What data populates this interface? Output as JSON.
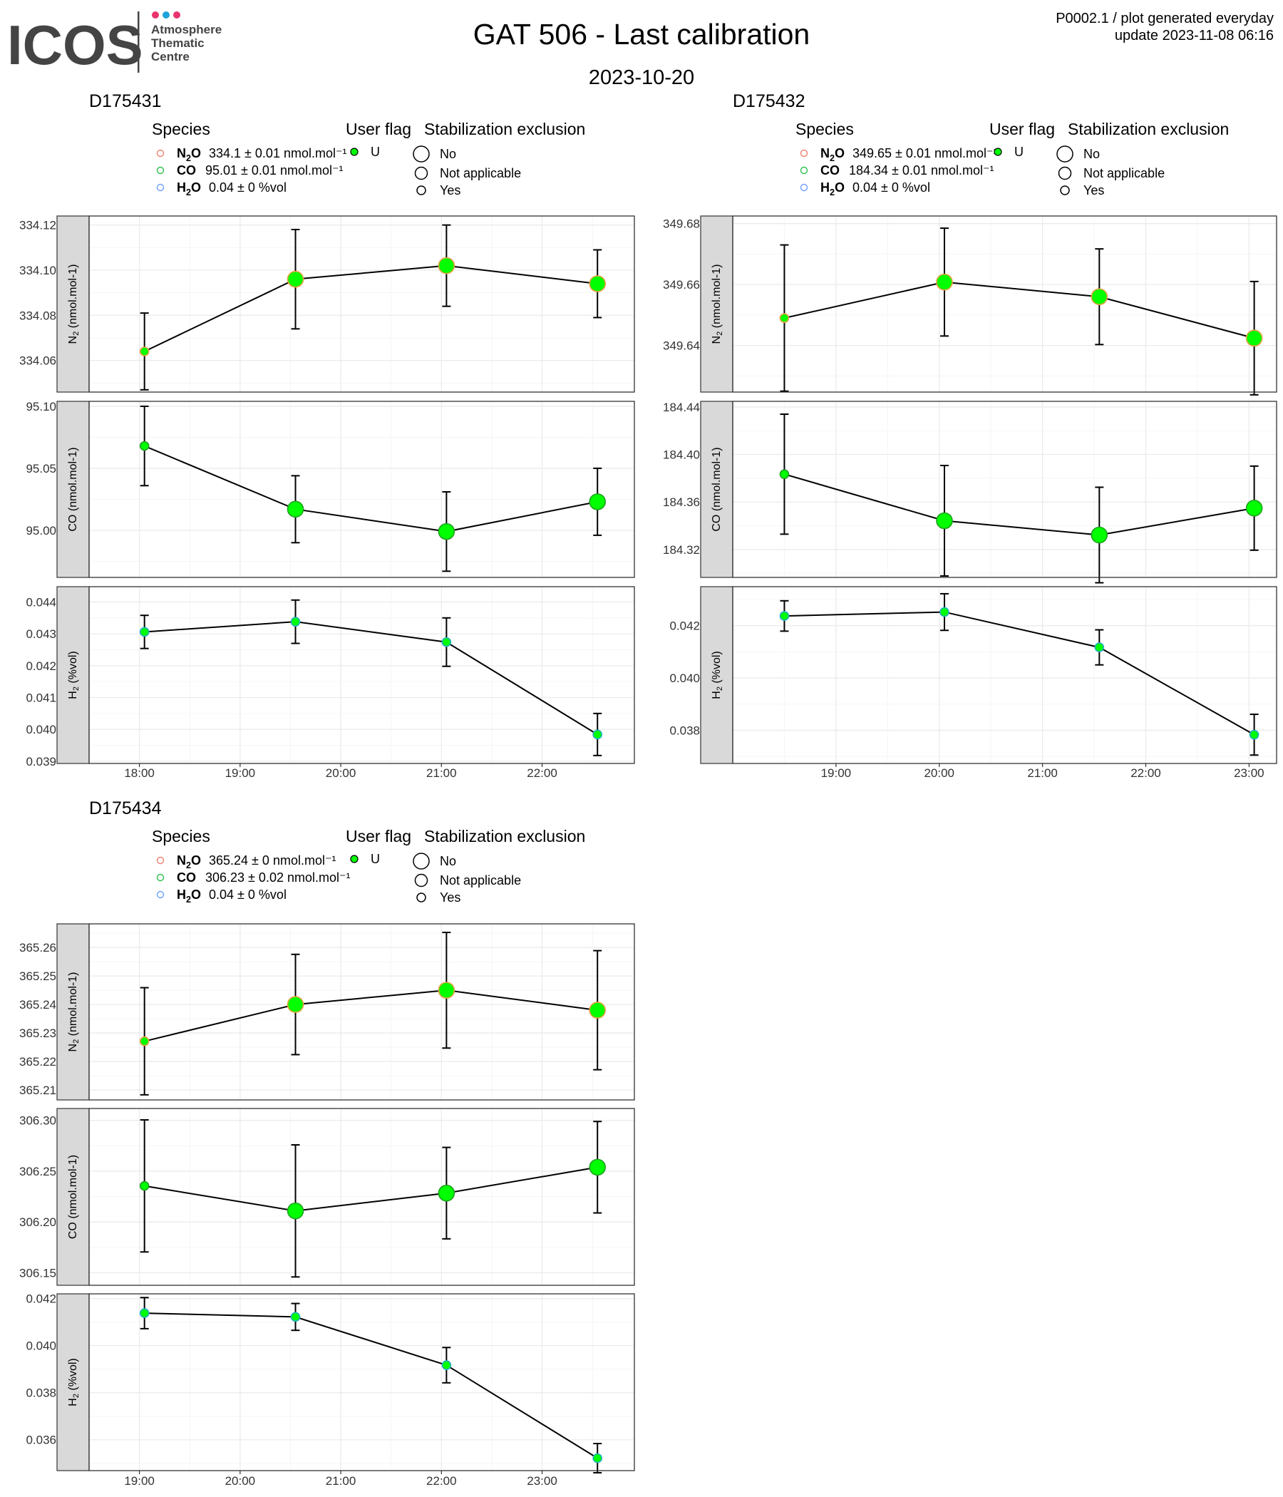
{
  "logo": {
    "wordmark": "ICOS",
    "lines": [
      "Atmosphere",
      "Thematic",
      "Centre"
    ],
    "dot_colors": [
      "#e8336d",
      "#1fa3dc",
      "#e8336d"
    ],
    "text_color": "#444444"
  },
  "header": {
    "title": "GAT 506 - Last calibration",
    "subtitle": "2023-10-20",
    "product_line": "P0002.1 / plot generated everyday",
    "update_line": "update  2023-11-08 06:16"
  },
  "colors": {
    "point_fill": "#00ff00",
    "point_border_n2o": "#e8a040",
    "point_border_co": "#20a020",
    "point_border_h2o": "#20b0c0",
    "legend_n2o": "#f08070",
    "legend_co": "#30c050",
    "legend_h2o": "#6fa0ff",
    "strip_fill": "#d9d9d9",
    "grid_major": "#ebebeb",
    "grid_minor": "#f5f5f5"
  },
  "legend_titles": {
    "species": "Species",
    "user_flag": "User flag",
    "stabilization": "Stabilization exclusion"
  },
  "legend_values": {
    "flag_U": "U",
    "stab_no": "No",
    "stab_na": "Not applicable",
    "stab_yes": "Yes"
  },
  "chart_data": [
    {
      "type": "line",
      "cylinder": "D175431",
      "x_ticks": [
        "18:00",
        "19:00",
        "20:00",
        "21:00",
        "22:00"
      ],
      "x_range": [
        "17:30",
        "22:55"
      ],
      "legend_entries": [
        {
          "species": "N2O",
          "text": "334.1 ± 0.01 nmol.mol⁻¹"
        },
        {
          "species": "CO",
          "text": "95.01 ± 0.01 nmol.mol⁻¹"
        },
        {
          "species": "H2O",
          "text": "0.04 ± 0 %vol"
        }
      ],
      "panels": [
        {
          "species": "N2O",
          "ylabel": "N2O (nmol.mol-1)",
          "ylim": [
            334.046,
            334.124
          ],
          "yticks": [
            334.06,
            334.08,
            334.1,
            334.12
          ],
          "tick_decimals": 2,
          "points": [
            {
              "time": "18:03",
              "y": 334.064,
              "err": 0.017,
              "stab": "Yes"
            },
            {
              "time": "19:33",
              "y": 334.096,
              "err": 0.022,
              "stab": "No"
            },
            {
              "time": "21:03",
              "y": 334.102,
              "err": 0.018,
              "stab": "No"
            },
            {
              "time": "22:33",
              "y": 334.094,
              "err": 0.015,
              "stab": "No"
            }
          ]
        },
        {
          "species": "CO",
          "ylabel": "CO (nmol.mol-1)",
          "ylim": [
            94.962,
            95.104
          ],
          "yticks": [
            95.0,
            95.05,
            95.1
          ],
          "tick_decimals": 2,
          "points": [
            {
              "time": "18:03",
              "y": 95.068,
              "err": 0.032,
              "stab": "Yes"
            },
            {
              "time": "19:33",
              "y": 95.017,
              "err": 0.027,
              "stab": "No"
            },
            {
              "time": "21:03",
              "y": 94.999,
              "err": 0.032,
              "stab": "No"
            },
            {
              "time": "22:33",
              "y": 95.023,
              "err": 0.027,
              "stab": "No"
            }
          ]
        },
        {
          "species": "H2O",
          "ylabel": "H2O (%vol)",
          "ylim": [
            0.03893,
            0.04448
          ],
          "yticks": [
            0.039,
            0.04,
            0.041,
            0.042,
            0.043,
            0.044
          ],
          "tick_decimals": 3,
          "points": [
            {
              "time": "18:03",
              "y": 0.04306,
              "err": 0.00052,
              "stab": "Yes"
            },
            {
              "time": "19:33",
              "y": 0.04338,
              "err": 0.00068,
              "stab": "Yes"
            },
            {
              "time": "21:03",
              "y": 0.04274,
              "err": 0.00076,
              "stab": "Yes"
            },
            {
              "time": "22:33",
              "y": 0.03984,
              "err": 0.00066,
              "stab": "Yes"
            }
          ]
        }
      ]
    },
    {
      "type": "line",
      "cylinder": "D175432",
      "x_ticks": [
        "19:00",
        "20:00",
        "21:00",
        "22:00",
        "23:00"
      ],
      "x_range": [
        "18:00",
        "23:16"
      ],
      "legend_entries": [
        {
          "species": "N2O",
          "text": "349.65 ± 0.01 nmol.mol⁻¹"
        },
        {
          "species": "CO",
          "text": "184.34 ± 0.01 nmol.mol⁻¹"
        },
        {
          "species": "H2O",
          "text": "0.04 ± 0 %vol"
        }
      ],
      "panels": [
        {
          "species": "N2O",
          "ylabel": "N2O (nmol.mol-1)",
          "ylim": [
            349.6247,
            349.6825
          ],
          "yticks": [
            349.64,
            349.66,
            349.68
          ],
          "tick_decimals": 2,
          "points": [
            {
              "time": "18:30",
              "y": 349.649,
              "err": 0.024,
              "stab": "Yes"
            },
            {
              "time": "20:03",
              "y": 349.6608,
              "err": 0.0177,
              "stab": "No"
            },
            {
              "time": "21:33",
              "y": 349.656,
              "err": 0.0157,
              "stab": "No"
            },
            {
              "time": "23:03",
              "y": 349.6424,
              "err": 0.0186,
              "stab": "No"
            }
          ]
        },
        {
          "species": "CO",
          "ylabel": "CO (nmol.mol-1)",
          "ylim": [
            184.2965,
            184.4447
          ],
          "yticks": [
            184.32,
            184.36,
            184.4,
            184.44
          ],
          "tick_decimals": 2,
          "points": [
            {
              "time": "18:30",
              "y": 184.3834,
              "err": 0.0505,
              "stab": "Yes"
            },
            {
              "time": "20:03",
              "y": 184.3442,
              "err": 0.0465,
              "stab": "No"
            },
            {
              "time": "21:33",
              "y": 184.3322,
              "err": 0.0402,
              "stab": "No"
            },
            {
              "time": "23:03",
              "y": 184.3548,
              "err": 0.0354,
              "stab": "No"
            }
          ]
        },
        {
          "species": "H2O",
          "ylabel": "H2O (%vol)",
          "ylim": [
            0.03673,
            0.04349
          ],
          "yticks": [
            0.038,
            0.04,
            0.042
          ],
          "tick_decimals": 3,
          "points": [
            {
              "time": "18:30",
              "y": 0.04237,
              "err": 0.00058,
              "stab": "Yes"
            },
            {
              "time": "20:03",
              "y": 0.04252,
              "err": 0.0007,
              "stab": "Yes"
            },
            {
              "time": "21:33",
              "y": 0.04117,
              "err": 0.00067,
              "stab": "Yes"
            },
            {
              "time": "23:03",
              "y": 0.03783,
              "err": 0.00078,
              "stab": "Yes"
            }
          ]
        }
      ]
    },
    {
      "type": "line",
      "cylinder": "D175434",
      "x_ticks": [
        "19:00",
        "20:00",
        "21:00",
        "22:00",
        "23:00"
      ],
      "x_range": [
        "18:30",
        "23:55"
      ],
      "legend_entries": [
        {
          "species": "N2O",
          "text": "365.24 ± 0 nmol.mol⁻¹"
        },
        {
          "species": "CO",
          "text": "306.23 ± 0.02 nmol.mol⁻¹"
        },
        {
          "species": "H2O",
          "text": "0.04 ± 0 %vol"
        }
      ],
      "panels": [
        {
          "species": "N2O",
          "ylabel": "N2O (nmol.mol-1)",
          "ylim": [
            365.2065,
            365.2683
          ],
          "yticks": [
            365.21,
            365.22,
            365.23,
            365.24,
            365.25,
            365.26
          ],
          "tick_decimals": 2,
          "points": [
            {
              "time": "19:03",
              "y": 365.2271,
              "err": 0.0188,
              "stab": "Yes"
            },
            {
              "time": "20:33",
              "y": 365.24,
              "err": 0.0176,
              "stab": "No"
            },
            {
              "time": "22:03",
              "y": 365.245,
              "err": 0.0203,
              "stab": "No"
            },
            {
              "time": "23:33",
              "y": 365.238,
              "err": 0.0209,
              "stab": "No"
            }
          ]
        },
        {
          "species": "CO",
          "ylabel": "CO (nmol.mol-1)",
          "ylim": [
            306.1377,
            306.3117
          ],
          "yticks": [
            306.15,
            306.2,
            306.25,
            306.3
          ],
          "tick_decimals": 2,
          "points": [
            {
              "time": "19:03",
              "y": 306.2355,
              "err": 0.065,
              "stab": "Yes"
            },
            {
              "time": "20:33",
              "y": 306.2109,
              "err": 0.065,
              "stab": "No"
            },
            {
              "time": "22:03",
              "y": 306.2284,
              "err": 0.045,
              "stab": "No"
            },
            {
              "time": "23:33",
              "y": 306.2539,
              "err": 0.045,
              "stab": "No"
            }
          ]
        },
        {
          "species": "H2O",
          "ylabel": "H2O (%vol)",
          "ylim": [
            0.03469,
            0.0422
          ],
          "yticks": [
            0.036,
            0.038,
            0.04,
            0.042
          ],
          "tick_decimals": 3,
          "points": [
            {
              "time": "19:03",
              "y": 0.04138,
              "err": 0.00066,
              "stab": "Yes"
            },
            {
              "time": "20:33",
              "y": 0.04122,
              "err": 0.00057,
              "stab": "Yes"
            },
            {
              "time": "22:03",
              "y": 0.03917,
              "err": 0.00075,
              "stab": "Yes"
            },
            {
              "time": "23:33",
              "y": 0.03522,
              "err": 0.00062,
              "stab": "Yes"
            }
          ]
        }
      ]
    }
  ]
}
